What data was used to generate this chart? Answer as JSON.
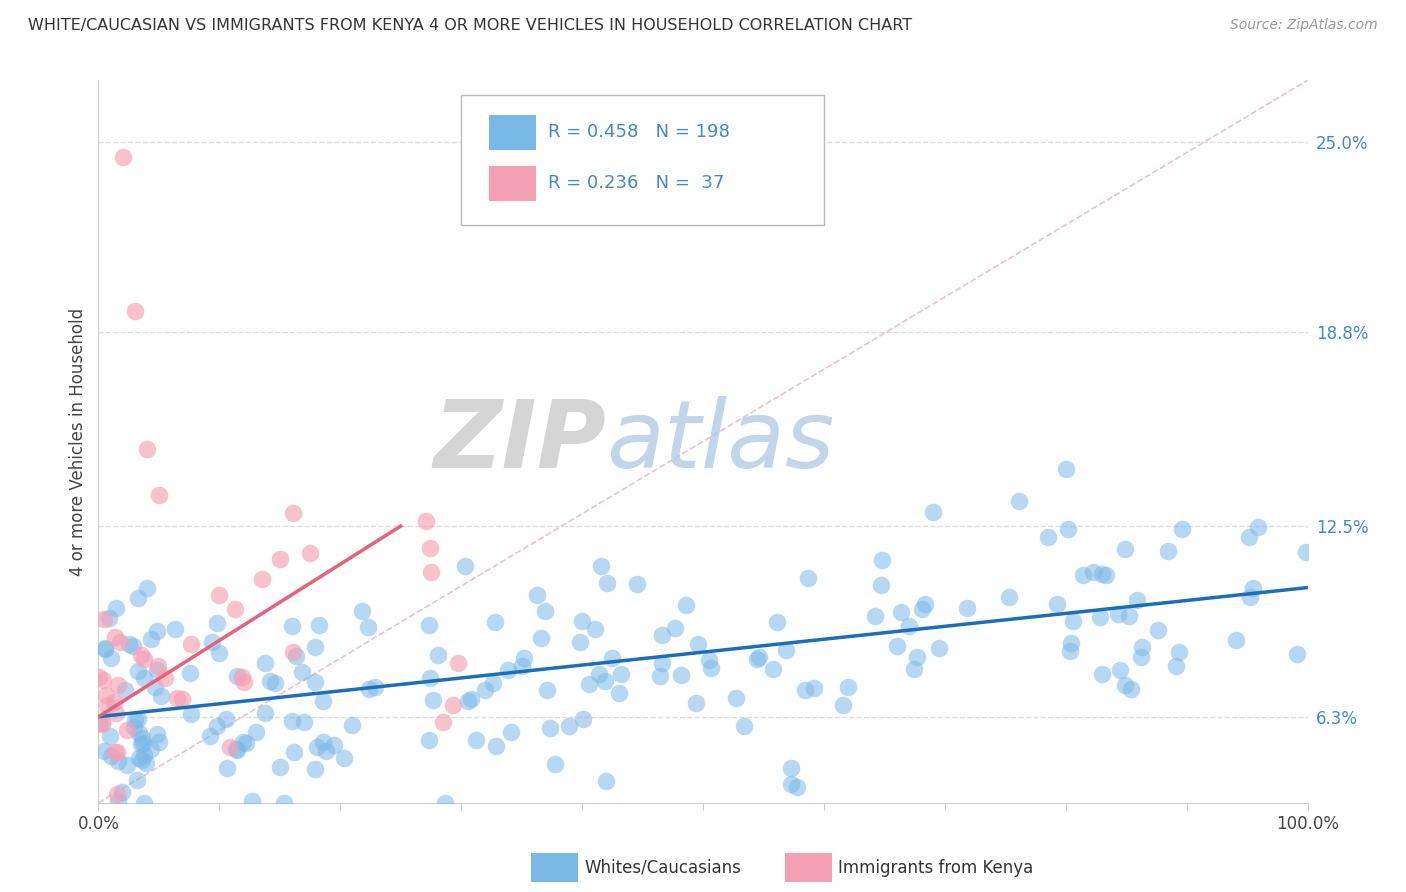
{
  "title": "WHITE/CAUCASIAN VS IMMIGRANTS FROM KENYA 4 OR MORE VEHICLES IN HOUSEHOLD CORRELATION CHART",
  "source": "Source: ZipAtlas.com",
  "ylabel": "4 or more Vehicles in Household",
  "blue_R": 0.458,
  "blue_N": 198,
  "pink_R": 0.236,
  "pink_N": 37,
  "blue_color": "#7ab8e8",
  "pink_color": "#f4a0b5",
  "blue_line_color": "#1a6fba",
  "pink_line_color": "#e8607a",
  "diag_line_color": "#f0b0b8",
  "xlim": [
    0,
    100
  ],
  "ylim": [
    3.5,
    27
  ],
  "ytick_vals": [
    6.3,
    12.5,
    18.8,
    25.0
  ],
  "ytick_color": "#4488cc",
  "xtick_labels": [
    "0.0%",
    "100.0%"
  ],
  "watermark_zip": "ZIP",
  "watermark_atlas": "atlas",
  "watermark_zip_color": "#d8d8d8",
  "watermark_atlas_color": "#b8cce8",
  "legend_label_blue": "Whites/Caucasians",
  "legend_label_pink": "Immigrants from Kenya",
  "title_color": "#333333",
  "source_color": "#999999",
  "grid_color": "#dddddd",
  "spine_color": "#cccccc"
}
